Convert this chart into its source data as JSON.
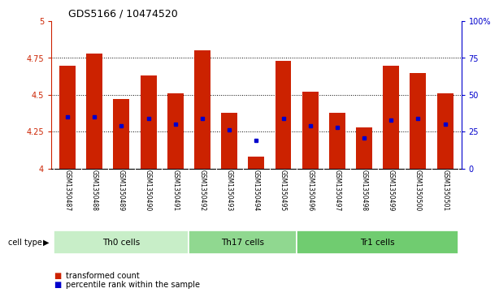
{
  "title": "GDS5166 / 10474520",
  "samples": [
    "GSM1350487",
    "GSM1350488",
    "GSM1350489",
    "GSM1350490",
    "GSM1350491",
    "GSM1350492",
    "GSM1350493",
    "GSM1350494",
    "GSM1350495",
    "GSM1350496",
    "GSM1350497",
    "GSM1350498",
    "GSM1350499",
    "GSM1350500",
    "GSM1350501"
  ],
  "bar_values": [
    4.7,
    4.78,
    4.47,
    4.63,
    4.51,
    4.8,
    4.38,
    4.08,
    4.73,
    4.52,
    4.38,
    4.28,
    4.7,
    4.65,
    4.51
  ],
  "blue_dot_values": [
    4.35,
    4.35,
    4.29,
    4.34,
    4.3,
    4.34,
    4.26,
    4.19,
    4.34,
    4.29,
    4.28,
    4.21,
    4.33,
    4.34,
    4.3
  ],
  "bar_color": "#CC2200",
  "dot_color": "#0000CC",
  "ymin": 4.0,
  "ymax": 5.0,
  "yticks": [
    4.0,
    4.25,
    4.5,
    4.75,
    5.0
  ],
  "ytick_labels": [
    "4",
    "4.25",
    "4.5",
    "4.75",
    "5"
  ],
  "right_yticks": [
    0,
    25,
    50,
    75,
    100
  ],
  "right_ytick_labels": [
    "0",
    "25",
    "50",
    "75",
    "100%"
  ],
  "cell_groups": [
    {
      "label": "Th0 cells",
      "start": 0,
      "end": 5,
      "color": "#c8eec8"
    },
    {
      "label": "Th17 cells",
      "start": 5,
      "end": 9,
      "color": "#90d890"
    },
    {
      "label": "Tr1 cells",
      "start": 9,
      "end": 15,
      "color": "#70cc70"
    }
  ],
  "legend_items": [
    {
      "label": "transformed count",
      "color": "#CC2200"
    },
    {
      "label": "percentile rank within the sample",
      "color": "#0000CC"
    }
  ],
  "cell_type_label": "cell type",
  "bg_color": "#d8d8d8",
  "plot_bg": "#ffffff"
}
